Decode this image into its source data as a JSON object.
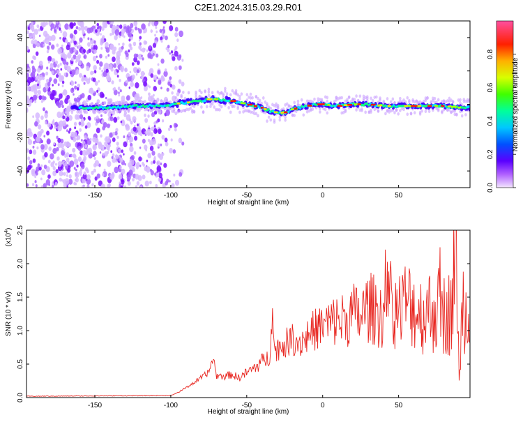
{
  "title": "C2E1.2024.315.03.29.R01",
  "chart_data": [
    {
      "type": "heatmap",
      "xlabel": "Height of straight line (km)",
      "ylabel": "Frequency (Hz)",
      "xlim": [
        -195,
        97
      ],
      "ylim": [
        -50,
        50
      ],
      "xticks": [
        -150,
        -100,
        -50,
        0,
        50
      ],
      "xtick_labels": [
        "-150",
        "-100",
        "-50",
        "0",
        "50"
      ],
      "yticks": [
        -40,
        -20,
        0,
        20,
        40
      ],
      "ytick_labels": [
        "-40",
        "-20",
        "0",
        "20",
        "40"
      ],
      "colorbar": {
        "label": "Normalized spectral amplitude",
        "range": [
          0,
          1
        ],
        "ticks": [
          0.0,
          0.2,
          0.4,
          0.6,
          0.8
        ],
        "tick_labels": [
          "0.0",
          "0.2",
          "0.4",
          "0.6",
          "0.8"
        ]
      },
      "noise_region_x": [
        -195,
        -100
      ],
      "ridge": {
        "x": [
          -160,
          -140,
          -120,
          -105,
          -100,
          -90,
          -80,
          -75,
          -70,
          -60,
          -50,
          -45,
          -40,
          -35,
          -30,
          -25,
          -20,
          -15,
          -10,
          -5,
          0,
          10,
          20,
          30,
          40,
          50,
          60,
          70,
          80,
          90,
          95
        ],
        "freq": [
          -2,
          -2,
          -1,
          -1,
          0,
          1,
          2,
          3,
          3,
          2,
          0,
          -1,
          -2,
          -4,
          -5,
          -5,
          -3,
          -2,
          -1,
          0,
          0,
          -1,
          0,
          0,
          -1,
          -1,
          -1,
          -1,
          -1,
          -2,
          -2
        ]
      }
    },
    {
      "type": "line",
      "xlabel": "Height of straight line (km)",
      "ylabel": "SNR (10 * v/v)",
      "y_multiplier_label": "(x10",
      "y_multiplier_exp": "4",
      "y_multiplier_close": ")",
      "xlim": [
        -195,
        97
      ],
      "ylim": [
        0,
        2.5
      ],
      "xticks": [
        -150,
        -100,
        -50,
        0,
        50
      ],
      "xtick_labels": [
        "-150",
        "-100",
        "-50",
        "0",
        "50"
      ],
      "yticks": [
        0,
        0.5,
        1.0,
        1.5,
        2.0,
        2.5
      ],
      "ytick_labels": [
        "0.0",
        "0.5",
        "1.0",
        "1.5",
        "2.0",
        "2.5"
      ],
      "series": [
        {
          "color": "#e8251f",
          "x": [
            -195,
            -100,
            -95,
            -90,
            -85,
            -80,
            -75,
            -72,
            -70,
            -65,
            -60,
            -55,
            -50,
            -45,
            -40,
            -35,
            -33,
            -32,
            -30,
            -25,
            -20,
            -15,
            -10,
            -5,
            0,
            5,
            10,
            15,
            20,
            25,
            30,
            35,
            40,
            45,
            50,
            55,
            60,
            65,
            70,
            75,
            80,
            85,
            88,
            90,
            92,
            95,
            97
          ],
          "y": [
            0.02,
            0.03,
            0.08,
            0.15,
            0.22,
            0.3,
            0.38,
            0.62,
            0.33,
            0.32,
            0.35,
            0.3,
            0.38,
            0.45,
            0.55,
            0.62,
            1.45,
            0.7,
            0.75,
            0.82,
            0.9,
            0.85,
            0.95,
            1.05,
            1.1,
            1.15,
            1.2,
            1.2,
            1.3,
            1.25,
            1.4,
            1.35,
            1.3,
            1.4,
            1.35,
            1.5,
            1.4,
            1.3,
            1.35,
            1.4,
            1.3,
            1.35,
            2.45,
            0.1,
            1.6,
            1.2,
            1.4
          ]
        }
      ]
    }
  ],
  "colors": {
    "line": "#e8251f",
    "colormap": [
      "#ffffff",
      "#9b40ff",
      "#4b00ff",
      "#0066ff",
      "#00d8ff",
      "#00ff66",
      "#7fff00",
      "#ffff00",
      "#ff9900",
      "#ff0000",
      "#ff55aa"
    ]
  }
}
